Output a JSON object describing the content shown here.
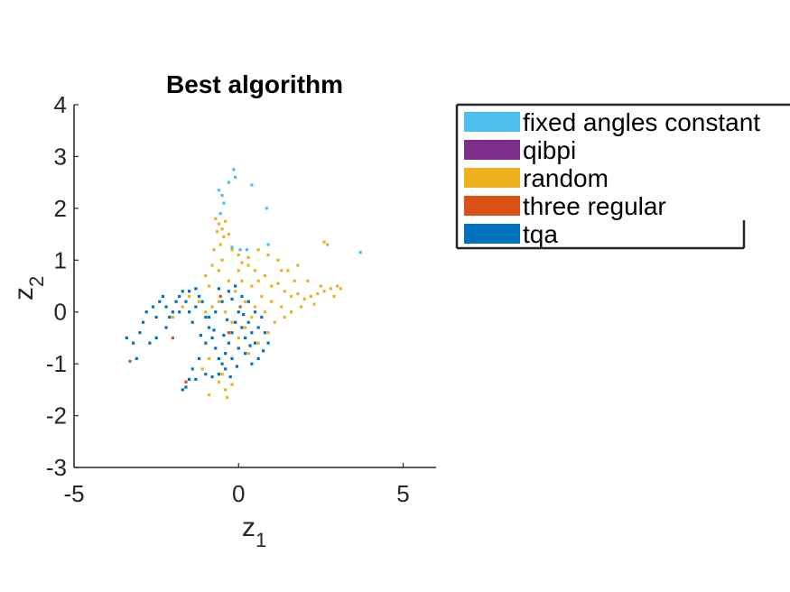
{
  "chart_data": {
    "type": "scatter",
    "title": "Best algorithm",
    "xlabel": {
      "base": "z",
      "sub": "1"
    },
    "ylabel": {
      "base": "z",
      "sub": "2"
    },
    "xlim": [
      -5,
      6
    ],
    "ylim": [
      -3,
      4
    ],
    "xticks": [
      -5,
      0,
      5
    ],
    "yticks": [
      -3,
      -2,
      -1,
      0,
      1,
      2,
      3,
      4
    ],
    "grid": false,
    "legend_position": "outside-right",
    "series": [
      {
        "name": "fixed angles constant",
        "color": "#4DBEEE",
        "points": [
          [
            -0.15,
            2.75
          ],
          [
            -0.1,
            2.6
          ],
          [
            -0.6,
            2.35
          ],
          [
            -0.5,
            2.25
          ],
          [
            -0.45,
            2.1
          ],
          [
            -0.3,
            2.5
          ],
          [
            0.4,
            2.45
          ],
          [
            0.85,
            2.0
          ],
          [
            3.7,
            1.15
          ],
          [
            -0.2,
            1.25
          ],
          [
            0.05,
            1.2
          ],
          [
            0.25,
            1.2
          ],
          [
            0.9,
            1.3
          ],
          [
            -0.55,
            1.9
          ]
        ]
      },
      {
        "name": "qibpi",
        "color": "#7E2F8E",
        "points": []
      },
      {
        "name": "random",
        "color": "#EDB120",
        "points": [
          [
            -0.7,
            1.8
          ],
          [
            -0.6,
            1.7
          ],
          [
            -0.5,
            1.6
          ],
          [
            -0.4,
            1.75
          ],
          [
            -0.3,
            1.5
          ],
          [
            -0.55,
            1.3
          ],
          [
            -0.2,
            1.2
          ],
          [
            0.0,
            1.1
          ],
          [
            0.1,
            0.95
          ],
          [
            0.3,
            0.9
          ],
          [
            0.5,
            0.8
          ],
          [
            0.6,
            0.6
          ],
          [
            0.8,
            0.7
          ],
          [
            1.0,
            0.5
          ],
          [
            1.2,
            0.55
          ],
          [
            1.4,
            0.4
          ],
          [
            1.6,
            0.3
          ],
          [
            1.8,
            0.35
          ],
          [
            2.0,
            0.25
          ],
          [
            2.2,
            0.3
          ],
          [
            2.4,
            0.35
          ],
          [
            2.6,
            0.4
          ],
          [
            2.8,
            0.45
          ],
          [
            3.0,
            0.5
          ],
          [
            3.1,
            0.45
          ],
          [
            2.7,
            1.3
          ],
          [
            2.6,
            1.35
          ],
          [
            1.8,
            0.9
          ],
          [
            1.5,
            0.8
          ],
          [
            1.2,
            1.0
          ],
          [
            0.9,
            1.1
          ],
          [
            0.7,
            0.3
          ],
          [
            0.5,
            0.1
          ],
          [
            0.4,
            -0.1
          ],
          [
            0.8,
            0.0
          ],
          [
            1.0,
            0.2
          ],
          [
            1.3,
            0.1
          ],
          [
            1.6,
            0.0
          ],
          [
            1.9,
            0.1
          ],
          [
            2.3,
            0.15
          ],
          [
            0.2,
            -0.3
          ],
          [
            0.0,
            -0.5
          ],
          [
            -0.2,
            -0.2
          ],
          [
            -0.4,
            0.0
          ],
          [
            -0.6,
            0.2
          ],
          [
            -0.8,
            0.1
          ],
          [
            -1.0,
            0.0
          ],
          [
            -1.2,
            0.2
          ],
          [
            -0.9,
            0.5
          ],
          [
            -0.6,
            0.8
          ],
          [
            -0.3,
            0.6
          ],
          [
            -0.1,
            0.4
          ],
          [
            0.2,
            0.2
          ],
          [
            0.1,
            0.6
          ],
          [
            -0.5,
            1.0
          ],
          [
            -0.8,
            0.9
          ],
          [
            -1.0,
            0.7
          ],
          [
            1.1,
            -0.2
          ],
          [
            1.4,
            -0.1
          ],
          [
            0.9,
            -0.4
          ],
          [
            0.6,
            -0.6
          ],
          [
            0.3,
            -0.8
          ],
          [
            -0.4,
            -1.5
          ],
          [
            -0.2,
            -1.4
          ],
          [
            -0.6,
            -1.35
          ],
          [
            -1.1,
            -1.1
          ],
          [
            -0.9,
            -0.9
          ],
          [
            -0.5,
            -1.2
          ],
          [
            -0.9,
            -1.6
          ],
          [
            -0.35,
            -1.65
          ],
          [
            -1.5,
            0.3
          ],
          [
            -1.7,
            0.1
          ],
          [
            -2.0,
            -0.1
          ],
          [
            2.5,
            0.5
          ],
          [
            2.9,
            0.3
          ],
          [
            0.0,
            0.8
          ],
          [
            0.4,
            0.5
          ],
          [
            1.7,
            0.6
          ],
          [
            2.1,
            0.6
          ],
          [
            1.3,
            0.8
          ],
          [
            0.6,
            1.2
          ],
          [
            0.3,
            1.05
          ],
          [
            -0.65,
            1.55
          ],
          [
            -0.45,
            1.45
          ],
          [
            -0.75,
            1.2
          ]
        ]
      },
      {
        "name": "three regular",
        "color": "#D95319",
        "points": [
          [
            -3.3,
            -0.95
          ],
          [
            -1.6,
            -1.35
          ],
          [
            -0.55,
            0.3
          ],
          [
            -0.3,
            -0.4
          ],
          [
            0.05,
            0.1
          ],
          [
            -2.0,
            -0.5
          ]
        ]
      },
      {
        "name": "tqa",
        "color": "#0072BD",
        "points": [
          [
            -3.4,
            -0.5
          ],
          [
            -3.2,
            -0.6
          ],
          [
            -3.0,
            -0.4
          ],
          [
            -2.9,
            -0.2
          ],
          [
            -2.8,
            0.0
          ],
          [
            -2.6,
            0.1
          ],
          [
            -2.5,
            -0.1
          ],
          [
            -2.4,
            0.2
          ],
          [
            -2.3,
            0.3
          ],
          [
            -2.2,
            0.1
          ],
          [
            -2.1,
            -0.1
          ],
          [
            -2.0,
            0.0
          ],
          [
            -1.9,
            0.2
          ],
          [
            -1.8,
            0.3
          ],
          [
            -1.7,
            0.4
          ],
          [
            -1.6,
            0.2
          ],
          [
            -1.5,
            0.0
          ],
          [
            -1.4,
            -0.2
          ],
          [
            -1.3,
            0.1
          ],
          [
            -1.2,
            0.3
          ],
          [
            -1.1,
            0.2
          ],
          [
            -1.0,
            -0.1
          ],
          [
            -0.9,
            -0.3
          ],
          [
            -0.8,
            -0.5
          ],
          [
            -0.7,
            -0.7
          ],
          [
            -0.6,
            -0.9
          ],
          [
            -0.5,
            -1.0
          ],
          [
            -0.4,
            -0.8
          ],
          [
            -0.3,
            -0.6
          ],
          [
            -0.2,
            -0.4
          ],
          [
            -0.1,
            -0.2
          ],
          [
            0.0,
            0.0
          ],
          [
            0.1,
            -0.3
          ],
          [
            0.2,
            -0.5
          ],
          [
            0.3,
            -0.2
          ],
          [
            0.4,
            -0.4
          ],
          [
            0.5,
            -0.6
          ],
          [
            0.6,
            -0.3
          ],
          [
            0.7,
            -0.1
          ],
          [
            0.8,
            -0.4
          ],
          [
            0.9,
            -0.6
          ],
          [
            0.5,
            0.0
          ],
          [
            0.3,
            0.2
          ],
          [
            0.1,
            0.3
          ],
          [
            -0.1,
            0.5
          ],
          [
            -0.3,
            0.4
          ],
          [
            -0.5,
            0.2
          ],
          [
            -0.7,
            0.0
          ],
          [
            -0.9,
            -0.1
          ],
          [
            -1.0,
            -0.6
          ],
          [
            -1.2,
            -0.9
          ],
          [
            -1.4,
            -1.1
          ],
          [
            -1.5,
            -1.3
          ],
          [
            -1.6,
            -1.45
          ],
          [
            -1.7,
            -1.5
          ],
          [
            -1.3,
            -1.3
          ],
          [
            -1.0,
            -1.2
          ],
          [
            -0.8,
            -1.25
          ],
          [
            -0.6,
            -1.2
          ],
          [
            -0.4,
            -1.1
          ],
          [
            -0.2,
            -0.9
          ],
          [
            0.0,
            -0.7
          ],
          [
            0.2,
            -0.8
          ],
          [
            0.4,
            -1.0
          ],
          [
            0.6,
            -0.9
          ],
          [
            -2.7,
            -0.6
          ],
          [
            -2.5,
            -0.5
          ],
          [
            -3.1,
            -0.9
          ],
          [
            -2.2,
            -0.3
          ],
          [
            -1.8,
            0.0
          ],
          [
            -1.5,
            0.4
          ],
          [
            -1.3,
            0.45
          ],
          [
            -0.6,
            0.45
          ],
          [
            -0.2,
            0.25
          ],
          [
            0.15,
            -0.05
          ],
          [
            -0.35,
            -0.15
          ],
          [
            -0.75,
            -0.35
          ],
          [
            -1.15,
            -0.45
          ],
          [
            -0.45,
            -0.45
          ],
          [
            0.35,
            -0.65
          ],
          [
            0.75,
            -0.75
          ],
          [
            -0.25,
            -1.25
          ],
          [
            -0.05,
            -1.05
          ]
        ]
      }
    ]
  }
}
